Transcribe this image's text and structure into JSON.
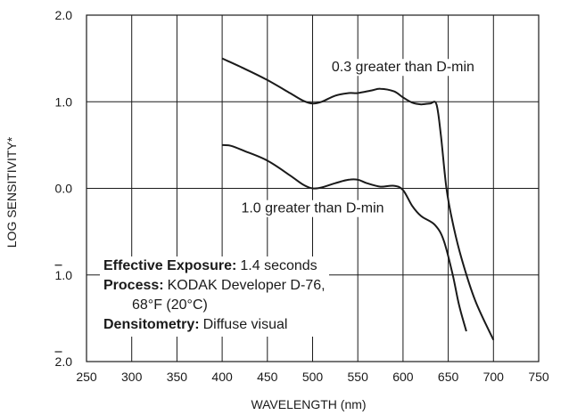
{
  "chart_data": {
    "type": "line",
    "xlabel": "WAVELENGTH (nm)",
    "ylabel": "LOG SENSITIVITY*",
    "xlim": [
      250,
      750
    ],
    "ylim": [
      -2,
      2
    ],
    "x_ticks": [
      "250",
      "300",
      "350",
      "400",
      "450",
      "500",
      "550",
      "600",
      "650",
      "700",
      "750"
    ],
    "y_ticks": [
      {
        "value": 2,
        "label": "2.0",
        "bar": false
      },
      {
        "value": 1,
        "label": "1.0",
        "bar": false
      },
      {
        "value": 0,
        "label": "0.0",
        "bar": false
      },
      {
        "value": -1,
        "label": "1.0",
        "bar": true
      },
      {
        "value": -2,
        "label": "2.0",
        "bar": true
      }
    ],
    "grid": true,
    "series": [
      {
        "name": "0.3 greater than D-min",
        "x": [
          400,
          425,
          450,
          475,
          490,
          500,
          510,
          525,
          540,
          550,
          565,
          575,
          590,
          600,
          610,
          620,
          630,
          637,
          642,
          648,
          655,
          665,
          680,
          700
        ],
        "y": [
          1.5,
          1.38,
          1.25,
          1.1,
          1.01,
          0.98,
          1.0,
          1.07,
          1.1,
          1.1,
          1.13,
          1.15,
          1.12,
          1.05,
          0.99,
          0.97,
          0.98,
          0.97,
          0.6,
          0.0,
          -0.4,
          -0.82,
          -1.3,
          -1.75
        ]
      },
      {
        "name": "1.0 greater than D-min",
        "x": [
          400,
          410,
          425,
          450,
          475,
          490,
          500,
          510,
          525,
          540,
          550,
          560,
          575,
          590,
          600,
          610,
          620,
          635,
          645,
          655,
          662,
          670
        ],
        "y": [
          0.5,
          0.49,
          0.43,
          0.32,
          0.15,
          0.04,
          0.0,
          0.01,
          0.06,
          0.1,
          0.1,
          0.06,
          0.02,
          0.03,
          -0.02,
          -0.2,
          -0.32,
          -0.42,
          -0.6,
          -1.0,
          -1.35,
          -1.65
        ]
      }
    ],
    "curve_labels": [
      {
        "text": "0.3 greater than D-min",
        "x": 600,
        "y": 1.35
      },
      {
        "text": "1.0 greater than D-min",
        "x": 500,
        "y": -0.28
      }
    ]
  },
  "notes": {
    "exposure_key": "Effective Exposure:",
    "exposure_val": "1.4 seconds",
    "process_key": "Process:",
    "process_val": "KODAK Developer D-76,",
    "process_val2": "68°F (20°C)",
    "densitometry_key": "Densitometry:",
    "densitometry_val": "Diffuse visual"
  }
}
